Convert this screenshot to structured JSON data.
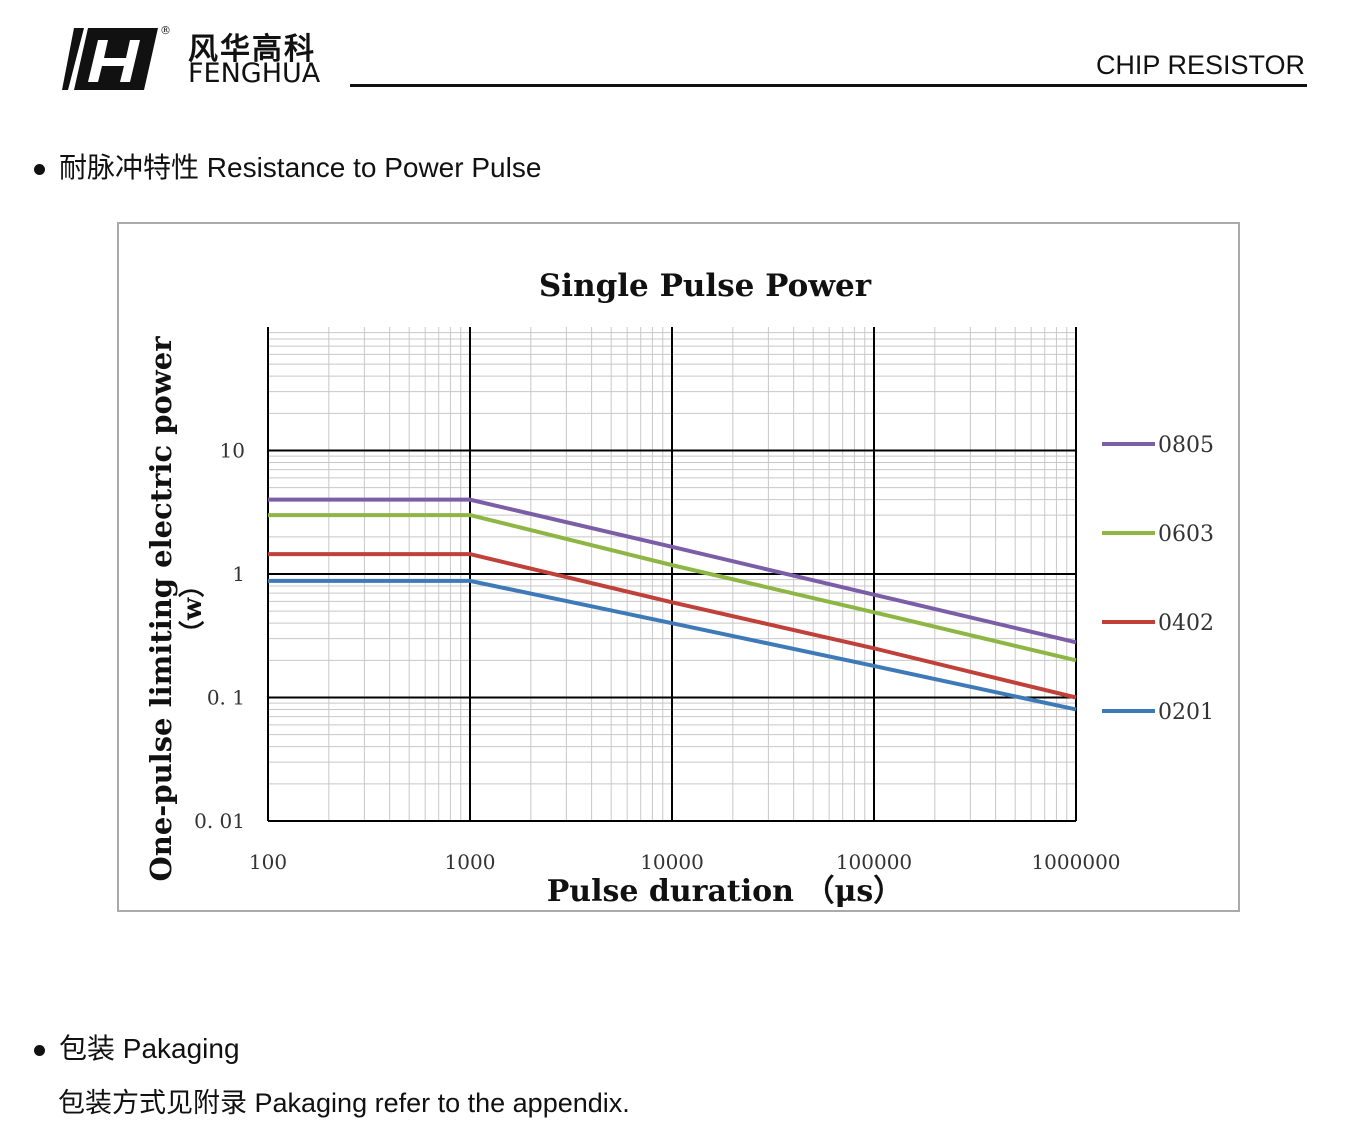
{
  "header": {
    "brand_cn": "风华高科",
    "brand_en": "FENGHUA",
    "logo_mark": "FH",
    "registered": "®",
    "title": "CHIP RESISTOR"
  },
  "sections": [
    {
      "title": "耐脉冲特性 Resistance to Power Pulse"
    },
    {
      "title": "包装 Pakaging",
      "note": "包装方式见附录 Pakaging refer to the appendix."
    }
  ],
  "chart_data": {
    "type": "line",
    "title": "Single  Pulse  Power",
    "xlabel": "Pulse duration （μs）",
    "ylabel": "One-pulse limiting electric power",
    "ylabel_unit": "（w）",
    "x_scale": "log",
    "y_scale": "log",
    "xlim": [
      100,
      1000000
    ],
    "ylim": [
      0.01,
      100
    ],
    "x_ticks": [
      "100",
      "1000",
      "10000",
      "100000",
      "1000000"
    ],
    "y_ticks": [
      "10",
      "1",
      "0. 1",
      "0. 01"
    ],
    "y_tick_values": [
      10,
      1,
      0.1,
      0.01
    ],
    "grid": true,
    "legend_position": "right",
    "x": [
      100,
      1000,
      10000,
      100000,
      1000000
    ],
    "series": [
      {
        "name": "0805",
        "color": "#7b5ea7",
        "values": [
          4,
          4,
          1.66,
          0.68,
          0.28
        ]
      },
      {
        "name": "0603",
        "color": "#8db645",
        "values": [
          3,
          3,
          1.18,
          0.49,
          0.2
        ]
      },
      {
        "name": "0402",
        "color": "#c0403a",
        "values": [
          1.45,
          1.45,
          0.59,
          0.25,
          0.1
        ]
      },
      {
        "name": "0201",
        "color": "#3f7ab8",
        "values": [
          0.88,
          0.88,
          0.4,
          0.18,
          0.08
        ]
      }
    ]
  }
}
